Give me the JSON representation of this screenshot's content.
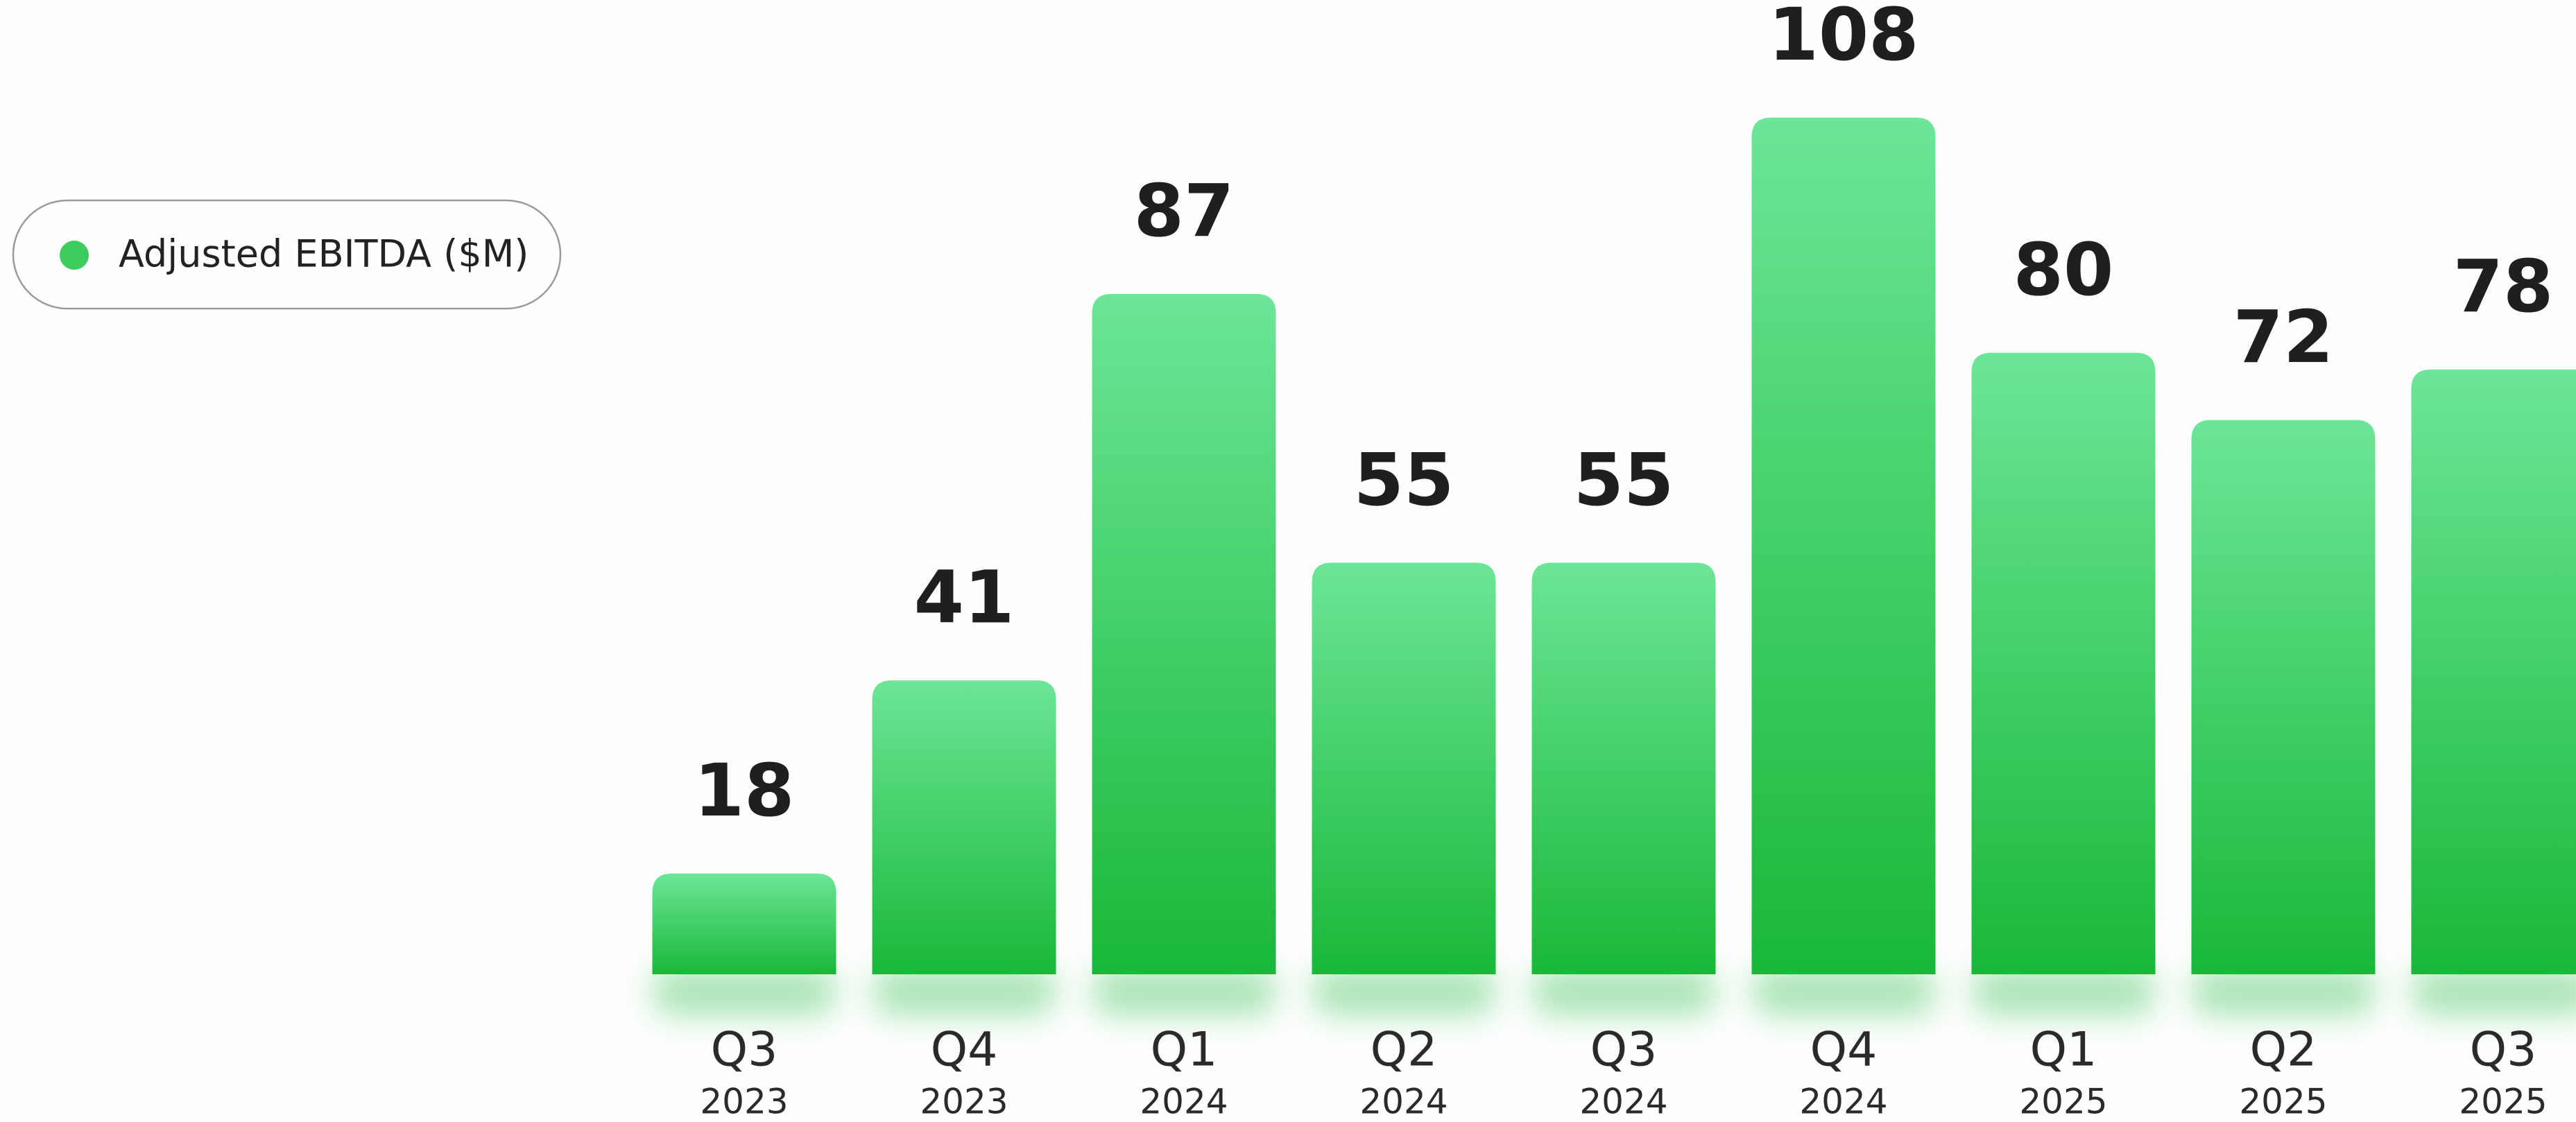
{
  "chart_data": {
    "type": "bar",
    "categories": [
      [
        "Q3",
        "2023"
      ],
      [
        "Q4",
        "2023"
      ],
      [
        "Q1",
        "2024"
      ],
      [
        "Q2",
        "2024"
      ],
      [
        "Q3",
        "2024"
      ],
      [
        "Q4",
        "2024"
      ],
      [
        "Q1",
        "2025"
      ],
      [
        "Q2",
        "2025"
      ],
      [
        "Q3",
        "2025"
      ]
    ],
    "series": [
      {
        "name": "Adjusted EBITDA ($M)",
        "color": "#3dcd5c",
        "gradient": [
          "#6ce697",
          "#19b839"
        ],
        "values": [
          18,
          41,
          87,
          55,
          55,
          108,
          80,
          72,
          78
        ]
      }
    ],
    "ylim": [
      6,
      122
    ],
    "grid": false,
    "legend": "top-left"
  }
}
